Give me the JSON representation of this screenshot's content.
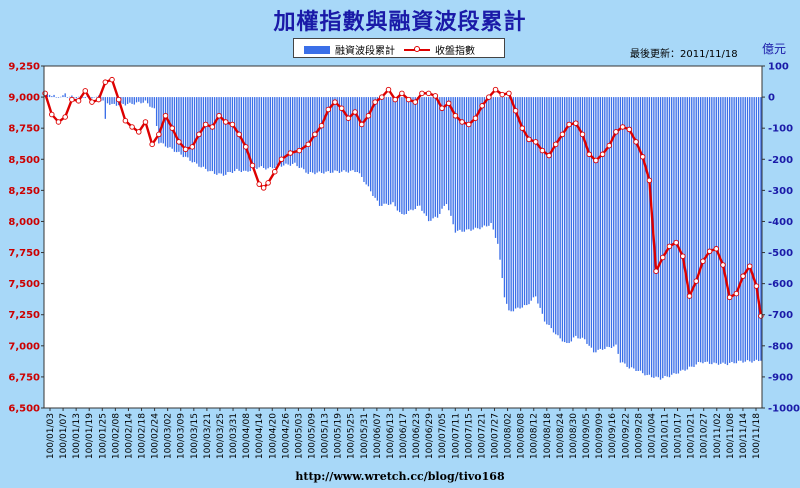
{
  "title": "加權指數與融資波段累計",
  "update_text": "最後更新：2011/11/18",
  "right_unit": "億元",
  "footer": "http://www.wretch.cc/blog/tivo168",
  "colors": {
    "background": "#a8d8f8",
    "plot_background": "#ffffff",
    "bars": "#3b6fe8",
    "line": "#dd0000",
    "title": "#1a1aa8",
    "left_axis_text": "#cc0000",
    "right_axis_text": "#1a1aa8"
  },
  "chart_data": {
    "type": "bar+line",
    "legend_position": "top-center",
    "grid": false,
    "series": [
      {
        "name": "融資波段累計",
        "type": "bar",
        "axis": "right",
        "anchors": [
          [
            0,
            5
          ],
          [
            2,
            8
          ],
          [
            4,
            5
          ],
          [
            8,
            3
          ],
          [
            14,
            0
          ],
          [
            22,
            0
          ],
          [
            26,
            -12
          ],
          [
            30,
            -25
          ],
          [
            38,
            -22
          ],
          [
            45,
            -15
          ],
          [
            49,
            -40
          ],
          [
            51,
            -145
          ],
          [
            60,
            -180
          ],
          [
            70,
            -225
          ],
          [
            76,
            -245
          ],
          [
            80,
            -250
          ],
          [
            86,
            -235
          ],
          [
            90,
            -240
          ],
          [
            96,
            -225
          ],
          [
            100,
            -230
          ],
          [
            106,
            -220
          ],
          [
            112,
            -215
          ],
          [
            118,
            -245
          ],
          [
            130,
            -240
          ],
          [
            140,
            -238
          ],
          [
            144,
            -280
          ],
          [
            150,
            -348
          ],
          [
            156,
            -342
          ],
          [
            160,
            -380
          ],
          [
            164,
            -365
          ],
          [
            168,
            -350
          ],
          [
            172,
            -398
          ],
          [
            176,
            -385
          ],
          [
            180,
            -340
          ],
          [
            184,
            -432
          ],
          [
            188,
            -430
          ],
          [
            192,
            -425
          ],
          [
            196,
            -420
          ],
          [
            200,
            -408
          ],
          [
            203,
            -470
          ],
          [
            206,
            -640
          ],
          [
            208,
            -690
          ],
          [
            212,
            -680
          ],
          [
            216,
            -670
          ],
          [
            220,
            -640
          ],
          [
            224,
            -720
          ],
          [
            230,
            -770
          ],
          [
            234,
            -795
          ],
          [
            238,
            -770
          ],
          [
            242,
            -780
          ],
          [
            246,
            -820
          ],
          [
            250,
            -810
          ],
          [
            256,
            -800
          ],
          [
            258,
            -850
          ],
          [
            262,
            -870
          ],
          [
            266,
            -880
          ],
          [
            270,
            -895
          ],
          [
            276,
            -905
          ],
          [
            280,
            -897
          ],
          [
            286,
            -880
          ],
          [
            290,
            -868
          ],
          [
            294,
            -852
          ],
          [
            300,
            -857
          ],
          [
            306,
            -858
          ],
          [
            312,
            -850
          ],
          [
            318,
            -850
          ],
          [
            321,
            -845
          ]
        ],
        "spikes": [
          [
            5,
            0
          ],
          [
            6,
            -2
          ],
          [
            9,
            12
          ],
          [
            20,
            -5
          ],
          [
            24,
            5
          ],
          [
            27,
            -70
          ]
        ]
      },
      {
        "name": "收盤指數",
        "type": "line",
        "axis": "left",
        "values": [
          [
            0,
            9030
          ],
          [
            3,
            8860
          ],
          [
            6,
            8800
          ],
          [
            9,
            8840
          ],
          [
            12,
            8980
          ],
          [
            15,
            8970
          ],
          [
            18,
            9050
          ],
          [
            21,
            8960
          ],
          [
            24,
            8980
          ],
          [
            27,
            9120
          ],
          [
            30,
            9140
          ],
          [
            33,
            8980
          ],
          [
            36,
            8810
          ],
          [
            39,
            8760
          ],
          [
            42,
            8720
          ],
          [
            45,
            8800
          ],
          [
            48,
            8620
          ],
          [
            51,
            8700
          ],
          [
            54,
            8850
          ],
          [
            57,
            8750
          ],
          [
            60,
            8640
          ],
          [
            63,
            8580
          ],
          [
            66,
            8600
          ],
          [
            69,
            8700
          ],
          [
            72,
            8780
          ],
          [
            75,
            8760
          ],
          [
            78,
            8850
          ],
          [
            81,
            8800
          ],
          [
            84,
            8780
          ],
          [
            87,
            8700
          ],
          [
            90,
            8600
          ],
          [
            93,
            8450
          ],
          [
            96,
            8300
          ],
          [
            98,
            8270
          ],
          [
            100,
            8310
          ],
          [
            103,
            8400
          ],
          [
            106,
            8500
          ],
          [
            110,
            8550
          ],
          [
            114,
            8570
          ],
          [
            118,
            8620
          ],
          [
            121,
            8700
          ],
          [
            124,
            8770
          ],
          [
            127,
            8900
          ],
          [
            130,
            8960
          ],
          [
            133,
            8910
          ],
          [
            136,
            8830
          ],
          [
            139,
            8880
          ],
          [
            142,
            8780
          ],
          [
            145,
            8850
          ],
          [
            148,
            8960
          ],
          [
            151,
            9000
          ],
          [
            154,
            9060
          ],
          [
            157,
            8980
          ],
          [
            160,
            9030
          ],
          [
            163,
            8980
          ],
          [
            166,
            8960
          ],
          [
            169,
            9030
          ],
          [
            172,
            9030
          ],
          [
            175,
            9010
          ],
          [
            178,
            8910
          ],
          [
            181,
            8950
          ],
          [
            184,
            8850
          ],
          [
            187,
            8800
          ],
          [
            190,
            8780
          ],
          [
            193,
            8830
          ],
          [
            196,
            8930
          ],
          [
            199,
            9000
          ],
          [
            202,
            9060
          ],
          [
            205,
            9020
          ],
          [
            208,
            9030
          ],
          [
            211,
            8890
          ],
          [
            214,
            8750
          ],
          [
            217,
            8660
          ],
          [
            220,
            8640
          ],
          [
            223,
            8570
          ],
          [
            226,
            8530
          ],
          [
            229,
            8620
          ],
          [
            232,
            8700
          ],
          [
            235,
            8780
          ],
          [
            238,
            8790
          ],
          [
            241,
            8700
          ],
          [
            244,
            8540
          ],
          [
            247,
            8490
          ],
          [
            250,
            8540
          ],
          [
            253,
            8610
          ],
          [
            256,
            8720
          ],
          [
            259,
            8760
          ],
          [
            262,
            8740
          ],
          [
            265,
            8640
          ],
          [
            268,
            8520
          ],
          [
            271,
            8330
          ],
          [
            274,
            7600
          ],
          [
            277,
            7710
          ],
          [
            280,
            7800
          ],
          [
            283,
            7830
          ],
          [
            286,
            7720
          ],
          [
            289,
            7400
          ],
          [
            292,
            7520
          ],
          [
            295,
            7680
          ],
          [
            298,
            7760
          ],
          [
            301,
            7780
          ],
          [
            304,
            7650
          ],
          [
            307,
            7390
          ],
          [
            310,
            7420
          ],
          [
            313,
            7560
          ],
          [
            316,
            7640
          ],
          [
            319,
            7480
          ],
          [
            321,
            7240
          ]
        ]
      }
    ],
    "left_axis": {
      "min": 6500,
      "max": 9250,
      "ticks": [
        "6,500",
        "6,750",
        "7,000",
        "7,250",
        "7,500",
        "7,750",
        "8,000",
        "8,250",
        "8,500",
        "8,750",
        "9,000",
        "9,250"
      ]
    },
    "right_axis": {
      "label": "億元",
      "min": -1000,
      "max": 100,
      "ticks": [
        "-1000",
        "-900",
        "-800",
        "-700",
        "-600",
        "-500",
        "-400",
        "-300",
        "-200",
        "-100",
        "0",
        "100"
      ]
    },
    "x_count": 322,
    "x_labels": [
      "100/01/03",
      "100/01/07",
      "100/01/13",
      "100/01/19",
      "100/01/25",
      "100/02/08",
      "100/02/14",
      "100/02/18",
      "100/02/24",
      "100/03/02",
      "100/03/09",
      "100/03/15",
      "100/03/21",
      "100/03/25",
      "100/03/31",
      "100/04/08",
      "100/04/14",
      "100/04/20",
      "100/04/26",
      "100/05/03",
      "100/05/09",
      "100/05/13",
      "100/05/19",
      "100/05/25",
      "100/05/31",
      "100/06/07",
      "100/06/13",
      "100/06/17",
      "100/06/23",
      "100/06/29",
      "100/07/05",
      "100/07/11",
      "100/07/15",
      "100/07/21",
      "100/07/27",
      "100/08/02",
      "100/08/08",
      "100/08/12",
      "100/08/18",
      "100/08/24",
      "100/08/30",
      "100/09/05",
      "100/09/09",
      "100/09/16",
      "100/09/22",
      "100/09/28",
      "100/10/04",
      "100/10/11",
      "100/10/17",
      "100/10/21",
      "100/10/27",
      "100/11/02",
      "100/11/08",
      "100/11/14",
      "100/11/18"
    ]
  }
}
